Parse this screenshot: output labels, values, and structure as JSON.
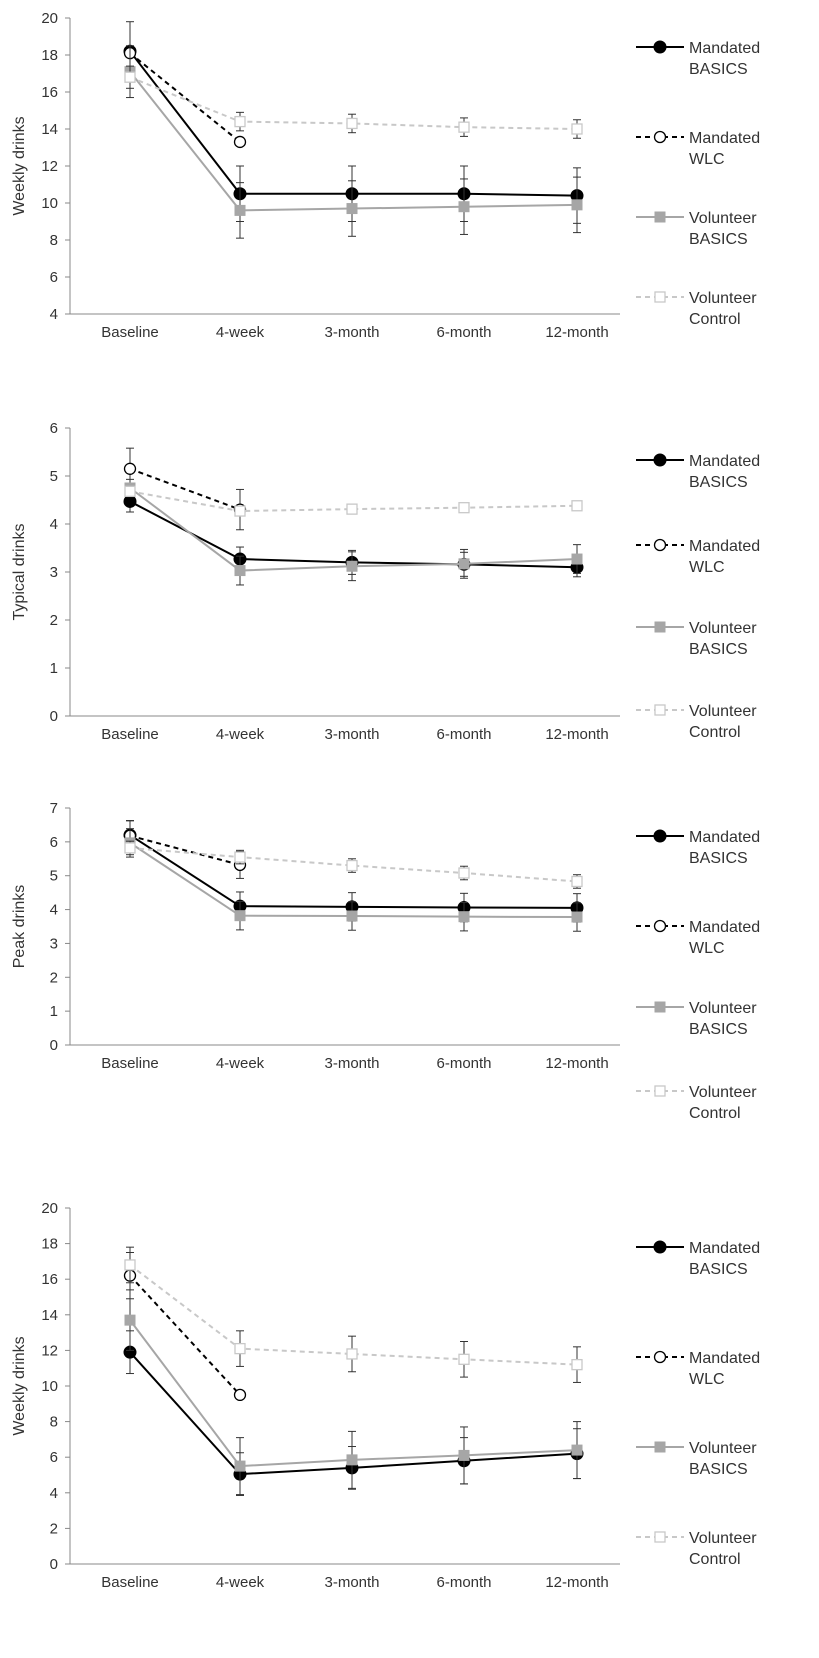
{
  "series_styles": {
    "Mandated BASICS": {
      "color": "#000000",
      "dash": "none",
      "marker": "filled-circle"
    },
    "Mandated WLC": {
      "color": "#000000",
      "dash": "dashed",
      "marker": "open-circle"
    },
    "Volunteer BASICS": {
      "color": "#a6a6a6",
      "dash": "none",
      "marker": "filled-square"
    },
    "Volunteer Control": {
      "color": "#c8c8c8",
      "dash": "dashed",
      "marker": "open-square"
    }
  },
  "chart_data": [
    {
      "type": "line",
      "title": "",
      "xlabel": "",
      "ylabel": "Weekly drinks",
      "categories": [
        "Baseline",
        "4-week",
        "3-month",
        "6-month",
        "12-month"
      ],
      "ylim": [
        4,
        20
      ],
      "yticks": [
        4,
        6,
        8,
        10,
        12,
        14,
        16,
        18,
        20
      ],
      "grid": false,
      "legend": "right",
      "legend_lines": [
        [
          "Mandated",
          "BASICS"
        ],
        [
          "Mandated",
          "WLC"
        ],
        [
          "Volunteer",
          "BASICS"
        ],
        [
          "Volunteer",
          "Control"
        ]
      ],
      "series": [
        {
          "name": "Mandated BASICS",
          "values": [
            18.2,
            10.5,
            10.5,
            10.5,
            10.4
          ],
          "err": [
            1.6,
            1.5,
            1.5,
            1.5,
            1.5
          ]
        },
        {
          "name": "Mandated WLC",
          "values": [
            18.1,
            13.3,
            null,
            null,
            null
          ],
          "err": [
            0,
            0,
            null,
            null,
            null
          ]
        },
        {
          "name": "Volunteer BASICS",
          "values": [
            17.1,
            9.6,
            9.7,
            9.8,
            9.9
          ],
          "err": [
            1.4,
            1.5,
            1.5,
            1.5,
            1.5
          ]
        },
        {
          "name": "Volunteer Control",
          "values": [
            16.8,
            14.4,
            14.3,
            14.1,
            14.0
          ],
          "err": [
            0.6,
            0.5,
            0.5,
            0.5,
            0.5
          ]
        }
      ]
    },
    {
      "type": "line",
      "title": "",
      "xlabel": "",
      "ylabel": "Typical drinks",
      "categories": [
        "Baseline",
        "4-week",
        "3-month",
        "6-month",
        "12-month"
      ],
      "ylim": [
        0,
        6
      ],
      "yticks": [
        0,
        1,
        2,
        3,
        4,
        5,
        6
      ],
      "grid": false,
      "legend": "right",
      "legend_lines": [
        [
          "Mandated",
          "BASICS"
        ],
        [
          "Mandated",
          "WLC"
        ],
        [
          "Volunteer",
          "BASICS"
        ],
        [
          "Volunteer",
          "Control"
        ]
      ],
      "series": [
        {
          "name": "Mandated BASICS",
          "values": [
            4.47,
            3.27,
            3.2,
            3.16,
            3.1
          ],
          "err": [
            0.22,
            0.25,
            0.25,
            0.25,
            0.2
          ]
        },
        {
          "name": "Mandated WLC",
          "values": [
            5.15,
            4.3,
            null,
            null,
            null
          ],
          "err": [
            0.43,
            0.42,
            null,
            null,
            null
          ]
        },
        {
          "name": "Volunteer BASICS",
          "values": [
            4.75,
            3.03,
            3.12,
            3.17,
            3.27
          ],
          "err": [
            0.18,
            0.3,
            0.3,
            0.3,
            0.3
          ]
        },
        {
          "name": "Volunteer Control",
          "values": [
            4.68,
            4.27,
            4.31,
            4.34,
            4.38
          ],
          "err": [
            0.05,
            0.05,
            0.06,
            0.07,
            0.07
          ]
        }
      ]
    },
    {
      "type": "line",
      "title": "",
      "xlabel": "",
      "ylabel": "Peak drinks",
      "categories": [
        "Baseline",
        "4-week",
        "3-month",
        "6-month",
        "12-month"
      ],
      "ylim": [
        0,
        7
      ],
      "yticks": [
        0,
        1,
        2,
        3,
        4,
        5,
        6,
        7
      ],
      "grid": false,
      "legend": "right",
      "legend_lines": [
        [
          "Mandated",
          "BASICS"
        ],
        [
          "Mandated",
          "WLC"
        ],
        [
          "Volunteer",
          "BASICS"
        ],
        [
          "Volunteer",
          "Control"
        ]
      ],
      "series": [
        {
          "name": "Mandated BASICS",
          "values": [
            6.2,
            4.1,
            4.08,
            4.06,
            4.05
          ],
          "err": [
            0.42,
            0.42,
            0.42,
            0.42,
            0.42
          ]
        },
        {
          "name": "Mandated WLC",
          "values": [
            6.18,
            5.32,
            null,
            null,
            null
          ],
          "err": [
            0.45,
            0.4,
            null,
            null,
            null
          ]
        },
        {
          "name": "Volunteer BASICS",
          "values": [
            5.97,
            3.82,
            3.81,
            3.79,
            3.78
          ],
          "err": [
            0.42,
            0.42,
            0.42,
            0.42,
            0.42
          ]
        },
        {
          "name": "Volunteer Control",
          "values": [
            5.82,
            5.55,
            5.3,
            5.08,
            4.83
          ],
          "err": [
            0.2,
            0.2,
            0.2,
            0.2,
            0.2
          ]
        }
      ]
    },
    {
      "type": "line",
      "title": "",
      "xlabel": "",
      "ylabel": "Weekly drinks",
      "categories": [
        "Baseline",
        "4-week",
        "3-month",
        "6-month",
        "12-month"
      ],
      "ylim": [
        0,
        20
      ],
      "yticks": [
        0,
        2,
        4,
        6,
        8,
        10,
        12,
        14,
        16,
        18,
        20
      ],
      "grid": false,
      "legend": "right",
      "legend_lines": [
        [
          "Mandated",
          "BASICS"
        ],
        [
          "Mandated",
          "WLC"
        ],
        [
          "Volunteer",
          "BASICS"
        ],
        [
          "Volunteer",
          "Control"
        ]
      ],
      "series": [
        {
          "name": "Mandated BASICS",
          "values": [
            11.9,
            5.05,
            5.4,
            5.8,
            6.2
          ],
          "err": [
            1.2,
            1.2,
            1.2,
            1.3,
            1.4
          ]
        },
        {
          "name": "Mandated WLC",
          "values": [
            16.2,
            9.5,
            null,
            null,
            null
          ],
          "err": [
            1.3,
            0,
            null,
            null,
            null
          ]
        },
        {
          "name": "Volunteer BASICS",
          "values": [
            13.7,
            5.5,
            5.85,
            6.1,
            6.4
          ],
          "err": [
            1.7,
            1.6,
            1.6,
            1.6,
            1.6
          ]
        },
        {
          "name": "Volunteer Control",
          "values": [
            16.8,
            12.1,
            11.8,
            11.5,
            11.2
          ],
          "err": [
            1.0,
            1.0,
            1.0,
            1.0,
            1.0
          ]
        }
      ]
    }
  ]
}
